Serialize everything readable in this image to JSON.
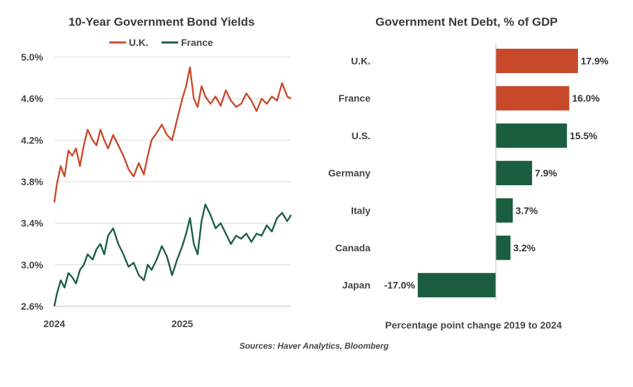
{
  "source": "Sources: Haver Analytics, Bloomberg",
  "colors": {
    "uk": "#c8492a",
    "france": "#1a5e3f",
    "grid": "#d9d9d9",
    "axis": "#bfbfbf"
  },
  "chart_data": [
    {
      "type": "line",
      "title": "10-Year Government Bond Yields",
      "xlabel": "",
      "ylabel": "",
      "ylim": [
        2.6,
        5.0
      ],
      "y_ticks": [
        "5.0%",
        "4.6%",
        "4.2%",
        "3.8%",
        "3.4%",
        "3.0%",
        "2.6%"
      ],
      "y_tick_values": [
        5.0,
        4.6,
        4.2,
        3.8,
        3.4,
        3.0,
        2.6
      ],
      "x_ticks": [
        "2024",
        "2025"
      ],
      "x_tick_values": [
        2024.0,
        2025.0
      ],
      "xlim": [
        2024.0,
        2025.85
      ],
      "grid": true,
      "legend": "top-center",
      "series": [
        {
          "name": "U.K.",
          "x": [
            2024.0,
            2024.02,
            2024.05,
            2024.08,
            2024.11,
            2024.14,
            2024.17,
            2024.2,
            2024.23,
            2024.26,
            2024.3,
            2024.33,
            2024.36,
            2024.39,
            2024.42,
            2024.46,
            2024.5,
            2024.54,
            2024.58,
            2024.62,
            2024.66,
            2024.7,
            2024.73,
            2024.76,
            2024.8,
            2024.84,
            2024.88,
            2024.92,
            2024.96,
            2025.0,
            2025.03,
            2025.06,
            2025.09,
            2025.12,
            2025.15,
            2025.18,
            2025.22,
            2025.26,
            2025.3,
            2025.34,
            2025.38,
            2025.42,
            2025.46,
            2025.5,
            2025.54,
            2025.58,
            2025.62,
            2025.66,
            2025.7,
            2025.74,
            2025.78,
            2025.82,
            2025.85
          ],
          "values": [
            3.6,
            3.78,
            3.95,
            3.85,
            4.1,
            4.05,
            4.12,
            3.95,
            4.15,
            4.3,
            4.2,
            4.15,
            4.3,
            4.2,
            4.12,
            4.25,
            4.15,
            4.05,
            3.92,
            3.85,
            3.98,
            3.87,
            4.05,
            4.2,
            4.27,
            4.35,
            4.25,
            4.2,
            4.4,
            4.6,
            4.72,
            4.9,
            4.6,
            4.52,
            4.72,
            4.62,
            4.55,
            4.62,
            4.53,
            4.68,
            4.58,
            4.52,
            4.55,
            4.65,
            4.58,
            4.48,
            4.6,
            4.55,
            4.62,
            4.58,
            4.75,
            4.62,
            4.6
          ]
        },
        {
          "name": "France",
          "x": [
            2024.0,
            2024.02,
            2024.05,
            2024.08,
            2024.11,
            2024.14,
            2024.17,
            2024.2,
            2024.23,
            2024.26,
            2024.3,
            2024.33,
            2024.36,
            2024.39,
            2024.42,
            2024.46,
            2024.5,
            2024.54,
            2024.58,
            2024.62,
            2024.66,
            2024.7,
            2024.73,
            2024.76,
            2024.8,
            2024.84,
            2024.88,
            2024.92,
            2024.96,
            2025.0,
            2025.03,
            2025.06,
            2025.09,
            2025.12,
            2025.15,
            2025.18,
            2025.22,
            2025.26,
            2025.3,
            2025.34,
            2025.38,
            2025.42,
            2025.46,
            2025.5,
            2025.54,
            2025.58,
            2025.62,
            2025.66,
            2025.7,
            2025.74,
            2025.78,
            2025.82,
            2025.85
          ],
          "values": [
            2.6,
            2.72,
            2.85,
            2.78,
            2.92,
            2.88,
            2.82,
            2.95,
            3.0,
            3.1,
            3.05,
            3.15,
            3.2,
            3.1,
            3.28,
            3.35,
            3.2,
            3.1,
            2.98,
            3.02,
            2.9,
            2.85,
            3.0,
            2.95,
            3.05,
            3.18,
            3.08,
            2.9,
            3.05,
            3.18,
            3.3,
            3.45,
            3.2,
            3.1,
            3.42,
            3.58,
            3.48,
            3.35,
            3.4,
            3.3,
            3.2,
            3.28,
            3.25,
            3.3,
            3.22,
            3.3,
            3.28,
            3.38,
            3.32,
            3.45,
            3.5,
            3.42,
            3.48
          ]
        }
      ]
    },
    {
      "type": "bar",
      "orientation": "horizontal",
      "title": "Government Net Debt, % of GDP",
      "xlabel": "Percentage point change 2019 to 2024",
      "categories": [
        "U.K.",
        "France",
        "U.S.",
        "Germany",
        "Italy",
        "Canada",
        "Japan"
      ],
      "values": [
        17.9,
        16.0,
        15.5,
        7.9,
        3.7,
        3.2,
        -17.0
      ],
      "data_labels": [
        "17.9%",
        "16.0%",
        "15.5%",
        "7.9%",
        "3.7%",
        "3.2%",
        "-17.0%"
      ],
      "bar_colors": [
        "#c8492a",
        "#c8492a",
        "#1a5e3f",
        "#1a5e3f",
        "#1a5e3f",
        "#1a5e3f",
        "#1a5e3f"
      ],
      "xlim": [
        -17.0,
        17.9
      ]
    }
  ]
}
